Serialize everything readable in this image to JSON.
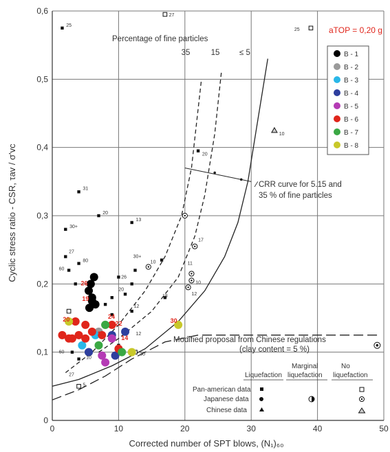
{
  "chart_data": {
    "type": "scatter",
    "title": "",
    "xlabel": "Corrected number of SPT blows, (N₁)₆₀",
    "ylabel": "Cyclic stress ratio - CSR, τav / σ'vc",
    "xlim": [
      0,
      50
    ],
    "ylim": [
      0,
      0.6
    ],
    "xticks": [
      "0",
      "10",
      "20",
      "30",
      "40",
      "50"
    ],
    "yticks": [
      "0",
      "0,1",
      "0,2",
      "0,3",
      "0,4",
      "0,5",
      "0,6"
    ],
    "grid": true,
    "legend_position": "top-right",
    "legend_title": "aTOP = 0,20 g",
    "fines_label": "Percentage of fine particles",
    "curve_labels": [
      "35",
      "15",
      "≤ 5"
    ],
    "crr_note": "CRR curve for 5.15 and 35 % of fine particles",
    "chinese_note": [
      "Modified proposal from Chinese regulations",
      "(clay content = 5 %)"
    ],
    "liq_table": {
      "headers": [
        "Liquefaction",
        "Marginal liquefaction",
        "No liquefaction"
      ],
      "rows": [
        "Pan-american data",
        "Japanese data",
        "Chinese data"
      ]
    },
    "curves": [
      {
        "name": "35",
        "style": "dashed",
        "points": [
          [
            2,
            0.07
          ],
          [
            6,
            0.1
          ],
          [
            10,
            0.14
          ],
          [
            14,
            0.19
          ],
          [
            17,
            0.24
          ],
          [
            19.5,
            0.3
          ],
          [
            21,
            0.37
          ],
          [
            22.5,
            0.5
          ]
        ]
      },
      {
        "name": "15",
        "style": "dashed",
        "points": [
          [
            7,
            0.1
          ],
          [
            10,
            0.12
          ],
          [
            15,
            0.16
          ],
          [
            19,
            0.21
          ],
          [
            21.5,
            0.27
          ],
          [
            23,
            0.33
          ],
          [
            24.5,
            0.42
          ],
          [
            25.5,
            0.51
          ]
        ]
      },
      {
        "name": "≤ 5",
        "style": "solid",
        "points": [
          [
            0,
            0.05
          ],
          [
            4,
            0.06
          ],
          [
            9,
            0.08
          ],
          [
            14,
            0.105
          ],
          [
            19,
            0.145
          ],
          [
            23,
            0.19
          ],
          [
            26,
            0.24
          ],
          [
            28,
            0.29
          ],
          [
            29.5,
            0.35
          ],
          [
            31,
            0.44
          ],
          [
            32.5,
            0.53
          ]
        ]
      },
      {
        "name": "Chinese",
        "style": "long-dash",
        "points": [
          [
            0,
            0.03
          ],
          [
            4,
            0.045
          ],
          [
            8,
            0.065
          ],
          [
            12,
            0.09
          ],
          [
            17,
            0.115
          ],
          [
            22,
            0.125
          ],
          [
            27,
            0.125
          ],
          [
            32,
            0.125
          ],
          [
            38,
            0.125
          ],
          [
            44,
            0.125
          ],
          [
            49,
            0.125
          ]
        ]
      }
    ],
    "series": [
      {
        "name": "B - 1",
        "color": "#000000",
        "points": [
          [
            5.5,
            0.19
          ],
          [
            6,
            0.18
          ],
          [
            6.5,
            0.17
          ],
          [
            5.8,
            0.2
          ],
          [
            6.3,
            0.21
          ],
          [
            6,
            0.175
          ],
          [
            5.6,
            0.165
          ]
        ]
      },
      {
        "name": "B - 2",
        "color": "#9a9a9a",
        "points": [
          [
            7,
            0.13
          ],
          [
            8,
            0.14
          ],
          [
            5.5,
            0.1
          ]
        ]
      },
      {
        "name": "B - 3",
        "color": "#2ab7e8",
        "points": [
          [
            6.5,
            0.125
          ],
          [
            4.5,
            0.11
          ]
        ]
      },
      {
        "name": "B - 4",
        "color": "#2e3f9e",
        "points": [
          [
            5.5,
            0.1
          ],
          [
            9,
            0.125
          ],
          [
            11,
            0.13
          ],
          [
            9.5,
            0.095
          ]
        ]
      },
      {
        "name": "B - 5",
        "color": "#b53bb5",
        "points": [
          [
            8,
            0.085
          ],
          [
            9,
            0.12
          ],
          [
            7.5,
            0.095
          ]
        ]
      },
      {
        "name": "B - 6",
        "color": "#e0251b",
        "points": [
          [
            1.5,
            0.125
          ],
          [
            3,
            0.12
          ],
          [
            4,
            0.125
          ],
          [
            5,
            0.14
          ],
          [
            6,
            0.13
          ],
          [
            7.5,
            0.125
          ],
          [
            9,
            0.14
          ],
          [
            10,
            0.105
          ],
          [
            3.5,
            0.145
          ],
          [
            2.5,
            0.12
          ],
          [
            5,
            0.12
          ]
        ]
      },
      {
        "name": "B - 7",
        "color": "#3aa844",
        "points": [
          [
            7,
            0.11
          ],
          [
            8,
            0.14
          ],
          [
            10.5,
            0.1
          ]
        ]
      },
      {
        "name": "B - 8",
        "color": "#c8c82a",
        "points": [
          [
            2.5,
            0.145
          ],
          [
            19,
            0.14
          ],
          [
            12,
            0.1
          ]
        ]
      }
    ],
    "pan_american": [
      [
        1.5,
        0.575
      ],
      [
        4,
        0.335
      ],
      [
        7,
        0.3
      ],
      [
        12,
        0.29
      ],
      [
        2,
        0.28
      ],
      [
        2,
        0.24
      ],
      [
        4,
        0.23
      ],
      [
        2.5,
        0.22
      ],
      [
        3.5,
        0.2
      ],
      [
        9,
        0.18
      ],
      [
        10,
        0.21
      ],
      [
        12,
        0.2
      ],
      [
        11,
        0.185
      ],
      [
        16.5,
        0.235
      ],
      [
        17,
        0.18
      ],
      [
        12.5,
        0.22
      ],
      [
        9,
        0.155
      ],
      [
        8,
        0.17
      ],
      [
        3,
        0.1
      ],
      [
        4,
        0.09
      ],
      [
        10,
        0.11
      ],
      [
        22,
        0.395
      ],
      [
        12,
        0.16
      ]
    ],
    "pan_american_open": [
      [
        17,
        0.595
      ],
      [
        39,
        0.575
      ],
      [
        4,
        0.05
      ],
      [
        12.5,
        0.1
      ],
      [
        2.5,
        0.16
      ]
    ],
    "japanese_open": [
      [
        20,
        0.3
      ],
      [
        21.5,
        0.255
      ],
      [
        14.5,
        0.225
      ],
      [
        21,
        0.205
      ],
      [
        20.5,
        0.195
      ],
      [
        21,
        0.215
      ]
    ],
    "chinese_open": [
      [
        33.5,
        0.425
      ],
      [
        49,
        0.11
      ]
    ],
    "point_labels": [
      {
        "x": 2.1,
        "y": 0.577,
        "t": "25"
      },
      {
        "x": 17.6,
        "y": 0.592,
        "t": "27"
      },
      {
        "x": 36.5,
        "y": 0.571,
        "t": "25"
      },
      {
        "x": 4.6,
        "y": 0.338,
        "t": "31"
      },
      {
        "x": 7.6,
        "y": 0.302,
        "t": "20"
      },
      {
        "x": 12.6,
        "y": 0.292,
        "t": "13"
      },
      {
        "x": 2.6,
        "y": 0.282,
        "t": "30+"
      },
      {
        "x": 2.5,
        "y": 0.245,
        "t": "27"
      },
      {
        "x": 1,
        "y": 0.22,
        "t": "60"
      },
      {
        "x": 4.6,
        "y": 0.232,
        "t": "80"
      },
      {
        "x": 22.6,
        "y": 0.388,
        "t": "20"
      },
      {
        "x": 34.2,
        "y": 0.418,
        "t": "10"
      },
      {
        "x": 22,
        "y": 0.262,
        "t": "17"
      },
      {
        "x": 20.4,
        "y": 0.228,
        "t": "11"
      },
      {
        "x": 21.6,
        "y": 0.2,
        "t": "10"
      },
      {
        "x": 21,
        "y": 0.183,
        "t": "12"
      },
      {
        "x": 16.6,
        "y": 0.18,
        "t": "18"
      },
      {
        "x": 12.3,
        "y": 0.165,
        "t": "12"
      },
      {
        "x": 12.6,
        "y": 0.125,
        "t": "12"
      },
      {
        "x": 13.2,
        "y": 0.095,
        "t": "30"
      },
      {
        "x": 4.6,
        "y": 0.05,
        "t": "5"
      },
      {
        "x": 1,
        "y": 0.098,
        "t": "60"
      },
      {
        "x": 2.5,
        "y": 0.065,
        "t": "27"
      },
      {
        "x": 5.1,
        "y": 0.09,
        "t": "10"
      },
      {
        "x": 12.2,
        "y": 0.238,
        "t": "30+"
      },
      {
        "x": 14.8,
        "y": 0.23,
        "t": "10"
      },
      {
        "x": 10,
        "y": 0.19,
        "t": "20"
      },
      {
        "x": 10.4,
        "y": 0.208,
        "t": "26"
      }
    ],
    "red_labels": [
      {
        "x": 17.8,
        "y": 0.143,
        "t": "30"
      },
      {
        "x": 4.5,
        "y": 0.175,
        "t": "19"
      },
      {
        "x": 4.3,
        "y": 0.198,
        "t": "26"
      },
      {
        "x": 9.5,
        "y": 0.139,
        "t": "22"
      },
      {
        "x": 8.4,
        "y": 0.149,
        "t": "24"
      },
      {
        "x": 6.8,
        "y": 0.124,
        "t": "13"
      },
      {
        "x": 1.6,
        "y": 0.145,
        "t": "20"
      },
      {
        "x": 10.4,
        "y": 0.118,
        "t": "14"
      }
    ]
  }
}
